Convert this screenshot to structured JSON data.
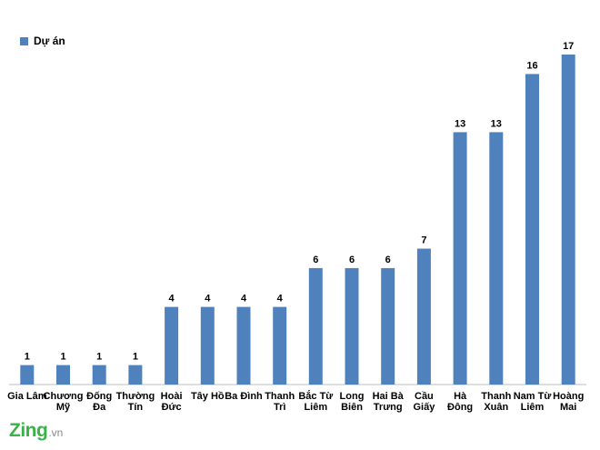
{
  "chart_data": {
    "type": "bar",
    "categories": [
      [
        "Gia Lâm"
      ],
      [
        "Chương",
        "Mỹ"
      ],
      [
        "Đống",
        "Đa"
      ],
      [
        "Thường",
        "Tín"
      ],
      [
        "Hoài",
        "Đức"
      ],
      [
        "Tây Hồ"
      ],
      [
        "Ba Đình"
      ],
      [
        "Thanh",
        "Trì"
      ],
      [
        "Bắc Từ",
        "Liêm"
      ],
      [
        "Long",
        "Biên"
      ],
      [
        "Hai Bà",
        "Trưng"
      ],
      [
        "Cầu",
        "Giấy"
      ],
      [
        "Hà",
        "Đông"
      ],
      [
        "Thanh",
        "Xuân"
      ],
      [
        "Nam Từ",
        "Liêm"
      ],
      [
        "Hoàng",
        "Mai"
      ]
    ],
    "series": [
      {
        "name": "Dự án",
        "color": "#4F81BD",
        "values": [
          1,
          1,
          1,
          1,
          4,
          4,
          4,
          4,
          6,
          6,
          6,
          7,
          13,
          13,
          16,
          17
        ]
      }
    ],
    "ylim": [
      0,
      17
    ],
    "grid": false,
    "legend_position": "top-left",
    "data_labels": true
  },
  "watermark": {
    "main": "Zing",
    "suffix": ".vn"
  }
}
